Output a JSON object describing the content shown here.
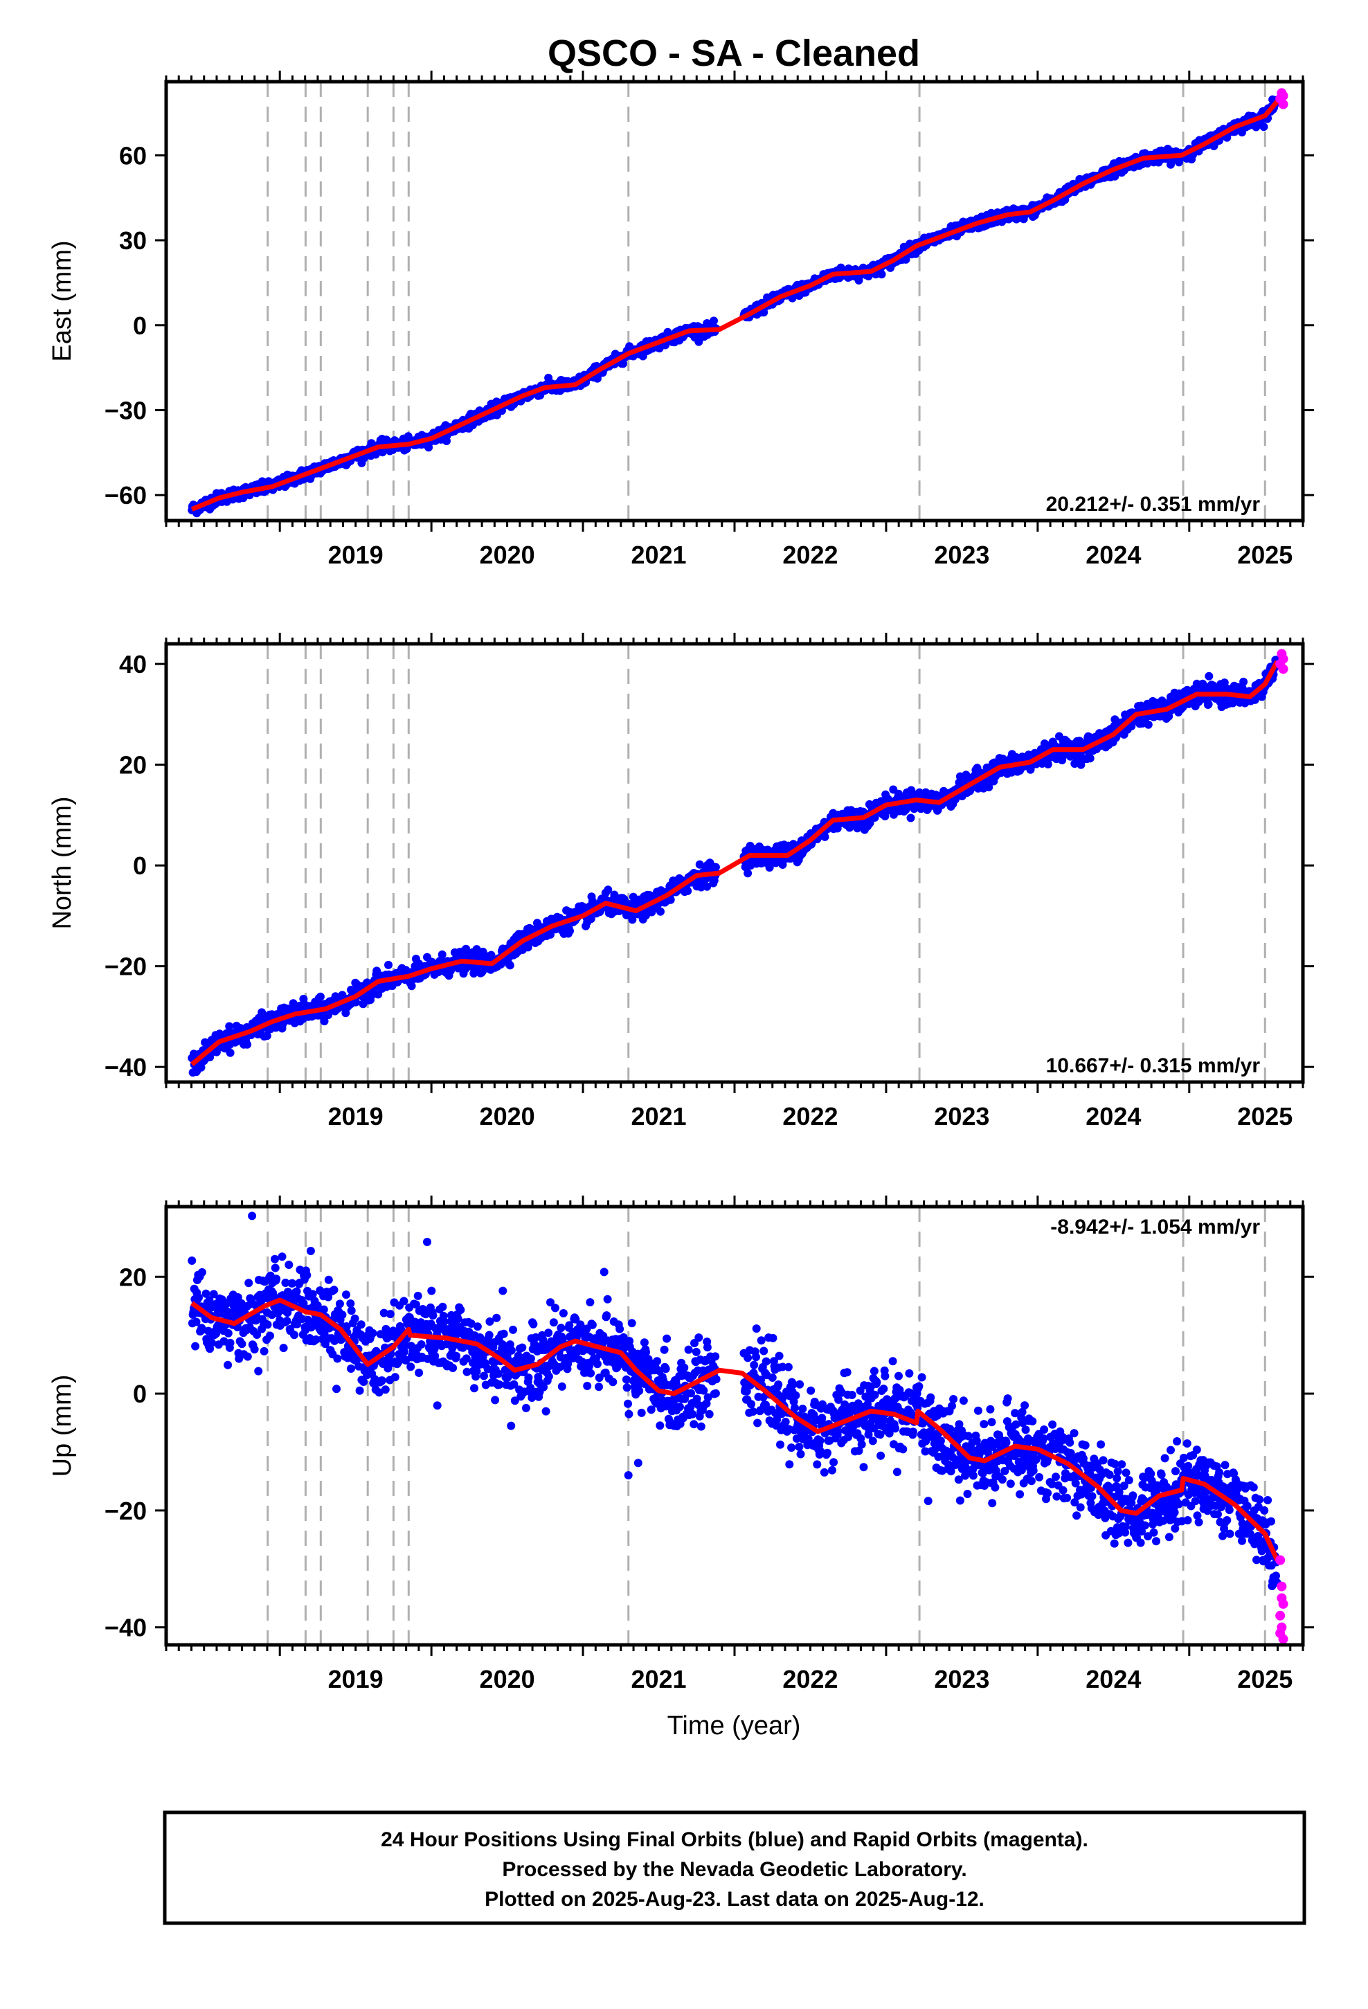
{
  "chart_data": {
    "title": "QSCO  - SA - Cleaned",
    "xlabel": "Time (year)",
    "xlim": [
      2018.25,
      2025.75
    ],
    "x_ticks": [
      "2019",
      "2020",
      "2021",
      "2022",
      "2023",
      "2024",
      "2025"
    ],
    "event_lines": [
      2018.92,
      2019.17,
      2019.27,
      2019.58,
      2019.75,
      2019.85,
      2021.3,
      2023.22,
      2024.96,
      2025.5
    ],
    "colors": {
      "final": "#0000ff",
      "rapid": "#ff00ff",
      "model": "#ff0000",
      "events": "#b0b0b0"
    },
    "panels": [
      {
        "name": "East",
        "ylabel": "East (mm)",
        "ylim": [
          -69,
          86
        ],
        "yticks": [
          "-60",
          "-30",
          "0",
          "30",
          "60"
        ],
        "rate": "20.212+/- 0.351 mm/yr",
        "rate_position": "bottom-right",
        "model": [
          [
            2018.42,
            -65
          ],
          [
            2018.6,
            -61
          ],
          [
            2018.75,
            -59
          ],
          [
            2018.95,
            -57
          ],
          [
            2019.1,
            -54
          ],
          [
            2019.3,
            -50
          ],
          [
            2019.5,
            -46
          ],
          [
            2019.65,
            -43
          ],
          [
            2019.85,
            -42
          ],
          [
            2020.0,
            -40
          ],
          [
            2020.2,
            -35
          ],
          [
            2020.4,
            -30
          ],
          [
            2020.6,
            -25
          ],
          [
            2020.75,
            -22
          ],
          [
            2020.95,
            -21
          ],
          [
            2021.1,
            -16
          ],
          [
            2021.3,
            -10
          ],
          [
            2021.5,
            -6
          ],
          [
            2021.7,
            -2
          ],
          [
            2021.9,
            -1.5
          ],
          [
            2022.1,
            4
          ],
          [
            2022.3,
            10
          ],
          [
            2022.5,
            14
          ],
          [
            2022.65,
            18
          ],
          [
            2022.9,
            19
          ],
          [
            2023.05,
            23
          ],
          [
            2023.2,
            28
          ],
          [
            2023.4,
            32
          ],
          [
            2023.6,
            36
          ],
          [
            2023.8,
            39
          ],
          [
            2023.95,
            40
          ],
          [
            2024.1,
            44
          ],
          [
            2024.3,
            50
          ],
          [
            2024.5,
            55
          ],
          [
            2024.7,
            59
          ],
          [
            2024.95,
            60
          ],
          [
            2025.1,
            64
          ],
          [
            2025.3,
            70
          ],
          [
            2025.5,
            74
          ],
          [
            2025.58,
            79
          ]
        ],
        "rapid": [
          [
            2025.6,
            80
          ],
          [
            2025.61,
            82
          ],
          [
            2025.62,
            78
          ],
          [
            2025.62,
            81
          ]
        ]
      },
      {
        "name": "North",
        "ylabel": "North (mm)",
        "ylim": [
          -43,
          44
        ],
        "yticks": [
          "-40",
          "-20",
          "0",
          "20",
          "40"
        ],
        "rate": "10.667+/- 0.315 mm/yr",
        "rate_position": "bottom-right",
        "model": [
          [
            2018.42,
            -39.5
          ],
          [
            2018.6,
            -35
          ],
          [
            2018.8,
            -33
          ],
          [
            2018.95,
            -31
          ],
          [
            2019.1,
            -29.5
          ],
          [
            2019.3,
            -28.5
          ],
          [
            2019.5,
            -26
          ],
          [
            2019.65,
            -23
          ],
          [
            2019.85,
            -22
          ],
          [
            2020.0,
            -20.5
          ],
          [
            2020.2,
            -19
          ],
          [
            2020.4,
            -19.5
          ],
          [
            2020.6,
            -15
          ],
          [
            2020.8,
            -12
          ],
          [
            2021.0,
            -10
          ],
          [
            2021.15,
            -7.5
          ],
          [
            2021.35,
            -9
          ],
          [
            2021.55,
            -6
          ],
          [
            2021.75,
            -2
          ],
          [
            2021.9,
            -1.5
          ],
          [
            2022.1,
            2
          ],
          [
            2022.35,
            2
          ],
          [
            2022.5,
            5
          ],
          [
            2022.65,
            9
          ],
          [
            2022.85,
            9.5
          ],
          [
            2023.0,
            12
          ],
          [
            2023.2,
            13
          ],
          [
            2023.35,
            12.5
          ],
          [
            2023.55,
            16
          ],
          [
            2023.75,
            19.5
          ],
          [
            2023.95,
            20.5
          ],
          [
            2024.1,
            23
          ],
          [
            2024.3,
            23
          ],
          [
            2024.5,
            26
          ],
          [
            2024.65,
            30
          ],
          [
            2024.85,
            31
          ],
          [
            2025.05,
            34
          ],
          [
            2025.25,
            34
          ],
          [
            2025.4,
            33.5
          ],
          [
            2025.5,
            36
          ],
          [
            2025.58,
            40.5
          ]
        ],
        "rapid": [
          [
            2025.6,
            40
          ],
          [
            2025.61,
            42
          ],
          [
            2025.62,
            39
          ],
          [
            2025.62,
            41
          ]
        ]
      },
      {
        "name": "Up",
        "ylabel": "Up (mm)",
        "ylim": [
          -43,
          32
        ],
        "yticks": [
          "-40",
          "-20",
          "0",
          "20"
        ],
        "rate": "-8.942+/- 1.054 mm/yr",
        "rate_position": "top-right",
        "model": [
          [
            2018.42,
            15.5
          ],
          [
            2018.55,
            13
          ],
          [
            2018.7,
            12
          ],
          [
            2018.9,
            15
          ],
          [
            2019.0,
            16
          ],
          [
            2019.17,
            14
          ],
          [
            2019.27,
            13.5
          ],
          [
            2019.4,
            11
          ],
          [
            2019.58,
            5
          ],
          [
            2019.75,
            8
          ],
          [
            2019.85,
            11
          ],
          [
            2019.86,
            10
          ],
          [
            2020.1,
            9.5
          ],
          [
            2020.3,
            8.5
          ],
          [
            2020.45,
            6
          ],
          [
            2020.55,
            4
          ],
          [
            2020.7,
            5
          ],
          [
            2020.85,
            8
          ],
          [
            2020.95,
            9
          ],
          [
            2021.1,
            8
          ],
          [
            2021.25,
            7
          ],
          [
            2021.35,
            4
          ],
          [
            2021.5,
            0.5
          ],
          [
            2021.6,
            0
          ],
          [
            2021.75,
            2
          ],
          [
            2021.9,
            4
          ],
          [
            2022.05,
            3.5
          ],
          [
            2022.2,
            0.5
          ],
          [
            2022.4,
            -4
          ],
          [
            2022.55,
            -6.5
          ],
          [
            2022.7,
            -5
          ],
          [
            2022.9,
            -3
          ],
          [
            2023.05,
            -3.5
          ],
          [
            2023.2,
            -5
          ],
          [
            2023.21,
            -3
          ],
          [
            2023.35,
            -6
          ],
          [
            2023.55,
            -11
          ],
          [
            2023.65,
            -11.5
          ],
          [
            2023.85,
            -9
          ],
          [
            2024.0,
            -9.5
          ],
          [
            2024.2,
            -12
          ],
          [
            2024.4,
            -16
          ],
          [
            2024.55,
            -20
          ],
          [
            2024.65,
            -20.5
          ],
          [
            2024.8,
            -17.5
          ],
          [
            2024.95,
            -16.5
          ],
          [
            2024.96,
            -14.5
          ],
          [
            2025.1,
            -15.5
          ],
          [
            2025.3,
            -19
          ],
          [
            2025.5,
            -24
          ],
          [
            2025.58,
            -28.5
          ]
        ],
        "rapid": [
          [
            2025.6,
            -28.5
          ],
          [
            2025.61,
            -33
          ],
          [
            2025.61,
            -35
          ],
          [
            2025.62,
            -36
          ],
          [
            2025.6,
            -38
          ],
          [
            2025.61,
            -40
          ],
          [
            2025.6,
            -41
          ],
          [
            2025.62,
            -42
          ]
        ]
      }
    ]
  },
  "footer": {
    "line1": "24 Hour Positions Using Final Orbits (blue) and Rapid Orbits (magenta).",
    "line2": "Processed by the Nevada Geodetic Laboratory.",
    "line3": "Plotted on 2025-Aug-23. Last data on 2025-Aug-12."
  }
}
